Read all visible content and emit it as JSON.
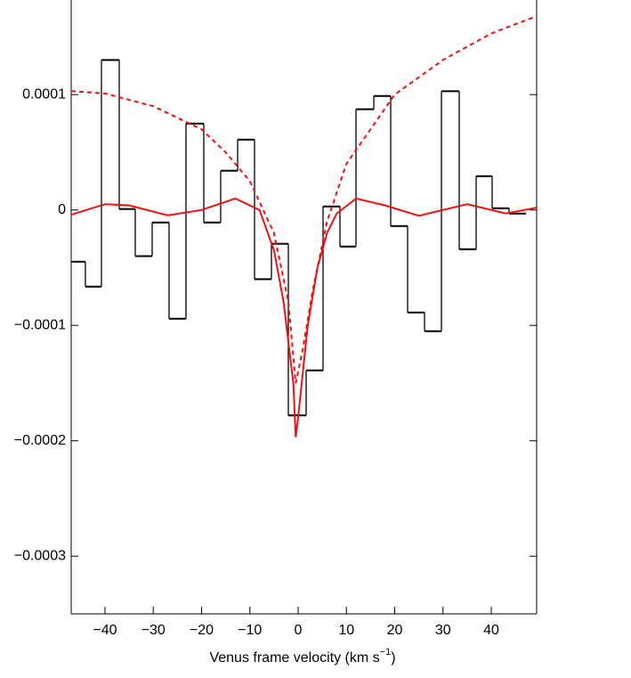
{
  "chart_data": {
    "type": "histogram",
    "x_label": [
      "Venus frame velocity (km s",
      "−1",
      ")"
    ],
    "xlim": [
      -47,
      49.4
    ],
    "ylim": [
      -0.00035,
      0.000182
    ],
    "xticks": [
      {
        "value": -40,
        "label": "−40"
      },
      {
        "value": -30,
        "label": "−30"
      },
      {
        "value": -20,
        "label": "−20"
      },
      {
        "value": -10,
        "label": "−10"
      },
      0,
      10,
      20,
      30,
      40
    ],
    "yticks": [
      {
        "value": -0.0003,
        "label": "−0.0003"
      },
      {
        "value": -0.0002,
        "label": "−0.0002"
      },
      {
        "value": -0.0001,
        "label": "−0.0001"
      },
      0,
      0.0001
    ],
    "bins": [
      -47,
      -44.06,
      -40.74,
      -37.05,
      -33.73,
      -30.23,
      -26.73,
      -23.23,
      -19.54,
      -16.04,
      -12.53,
      -9.03,
      -5.53,
      -2.03,
      1.66,
      5.16,
      8.66,
      11.98,
      15.67,
      19.17,
      22.67,
      26.18,
      29.68,
      33.36,
      36.87,
      40.18,
      43.69,
      47.19
    ],
    "values": [
      -4.48e-05,
      -6.64e-05,
      0.00013,
      8e-07,
      -4e-05,
      -1.08e-05,
      -9.42e-05,
      7.49e-05,
      -1.08e-05,
      3.4e-05,
      6.1e-05,
      -6e-05,
      -2.93e-05,
      -0.000178,
      -0.000139,
      3.1e-06,
      -3.17e-05,
      8.73e-05,
      9.88e-05,
      -1.39e-05,
      -8.88e-05,
      -0.000105,
      0.000103,
      -3.4e-05,
      2.93e-05,
      1.5e-06,
      -3.1e-06
    ],
    "color": "#000000",
    "lines": [
      {
        "color": "#ee1111",
        "dashed": false,
        "x": [
          -47,
          -40,
          -35,
          -27,
          -20,
          -13,
          -8,
          -5,
          -3,
          -1,
          -0.5,
          0,
          2,
          4,
          6,
          8,
          12,
          18,
          25,
          35,
          43,
          49.4
        ],
        "values": [
          -4e-06,
          5e-06,
          4e-06,
          -4.6e-06,
          0,
          1e-05,
          0,
          -3.5e-05,
          -8e-05,
          -0.00015,
          -0.000197,
          -0.00018,
          -0.0001,
          -5e-05,
          -2e-05,
          -3e-06,
          1e-05,
          4e-06,
          -5e-06,
          5e-06,
          -3e-06,
          2e-06
        ]
      },
      {
        "color": "#ee1111",
        "dashed": true,
        "x": [
          -47,
          -40,
          -30,
          -20,
          -15,
          -10,
          -5,
          -2,
          -0.5,
          1,
          3,
          6,
          10,
          15,
          20,
          30,
          40,
          49.4
        ],
        "values": [
          0.000103,
          0.000101,
          9e-05,
          7e-05,
          5e-05,
          2.5e-05,
          -2e-05,
          -8e-05,
          -0.00015,
          -0.00012,
          -7e-05,
          -1e-05,
          4e-05,
          7e-05,
          0.0001,
          0.00013,
          0.000153,
          0.000168
        ]
      }
    ]
  }
}
